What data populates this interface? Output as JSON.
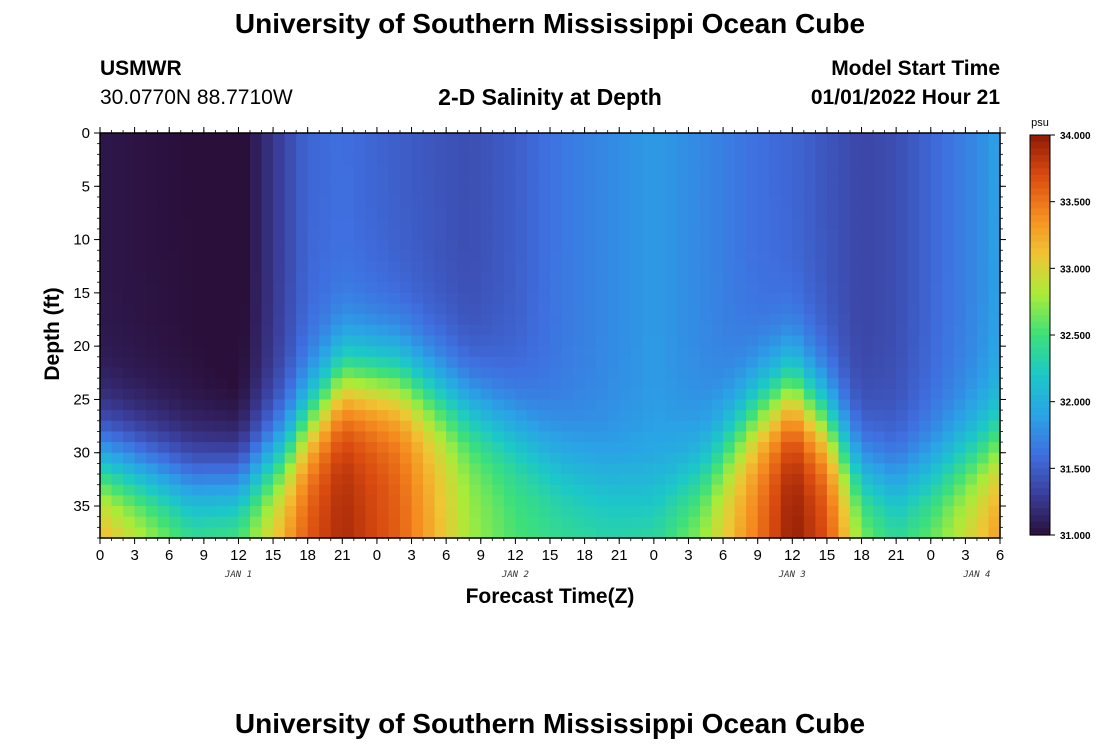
{
  "header": {
    "title": "University of Southern Mississippi Ocean Cube",
    "station": "USMWR",
    "coords": "30.0770N  88.7710W",
    "subtitle": "2-D Salinity at Depth",
    "model_start_label": "Model Start Time",
    "model_start_value": "01/01/2022 Hour 21"
  },
  "footer": {
    "title": "University of Southern Mississippi Ocean Cube"
  },
  "chart_data": {
    "type": "heatmap",
    "xlabel": "Forecast Time(Z)",
    "ylabel": "Depth (ft)",
    "x_tick_labels": [
      "0",
      "3",
      "6",
      "9",
      "12",
      "15",
      "18",
      "21",
      "0",
      "3",
      "6",
      "9",
      "12",
      "15",
      "18",
      "21",
      "0",
      "3",
      "6",
      "9",
      "12",
      "15",
      "18",
      "21",
      "0",
      "3",
      "6"
    ],
    "x_hours_range": [
      0,
      78
    ],
    "day_labels": [
      {
        "label": "JAN 1",
        "hour": 12
      },
      {
        "label": "JAN 2",
        "hour": 36
      },
      {
        "label": "JAN 3",
        "hour": 60
      },
      {
        "label": "JAN 4",
        "hour": 76
      }
    ],
    "y_ticks": [
      0,
      5,
      10,
      15,
      20,
      25,
      30,
      35
    ],
    "ylim": [
      0,
      38
    ],
    "colorbar": {
      "unit": "psu",
      "min": 31.0,
      "max": 34.0,
      "ticks": [
        "34.000",
        "33.500",
        "33.000",
        "32.500",
        "32.000",
        "31.500",
        "31.000"
      ],
      "colors": [
        "#2a0f3a",
        "#3b3d9a",
        "#3f6fe0",
        "#2aa3e6",
        "#1cc8c8",
        "#3de07a",
        "#a8ec3a",
        "#f0c534",
        "#f58a1f",
        "#d94a10",
        "#8f1a06"
      ]
    },
    "salinity_profile": {
      "x_hours": [
        0,
        8,
        12,
        16,
        18,
        21,
        26,
        32,
        36,
        40,
        44,
        48,
        52,
        57,
        60,
        63,
        66,
        69,
        72,
        76,
        78
      ],
      "surface_psu": [
        31.05,
        31.0,
        30.95,
        31.35,
        31.55,
        31.6,
        31.5,
        31.4,
        31.5,
        31.65,
        31.75,
        31.85,
        31.75,
        31.6,
        31.55,
        31.45,
        31.35,
        31.4,
        31.55,
        31.75,
        31.9
      ],
      "bottom_psu": [
        33.3,
        32.6,
        32.7,
        33.3,
        33.65,
        33.9,
        33.6,
        32.8,
        32.55,
        32.45,
        32.4,
        32.45,
        32.8,
        33.5,
        34.0,
        33.7,
        32.8,
        32.5,
        32.7,
        33.1,
        33.35
      ],
      "halocline_depth_ft": [
        31,
        33,
        33,
        30,
        27,
        23,
        23,
        26,
        28,
        31,
        33,
        34,
        32,
        26,
        24,
        27,
        32,
        33,
        32,
        30,
        29
      ]
    }
  }
}
